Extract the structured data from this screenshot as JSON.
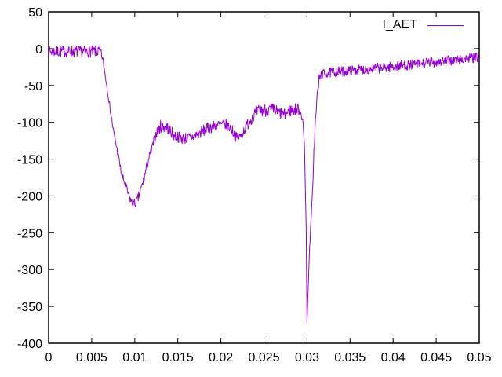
{
  "figure": {
    "background": "#ffffff",
    "border_color": "#000000",
    "text_color": "#000000",
    "line_color": "#9400d3"
  },
  "chart_data": {
    "type": "line",
    "title": "",
    "xlabel": "",
    "ylabel": "",
    "xlim": [
      0,
      0.05
    ],
    "ylim": [
      -400,
      50
    ],
    "grid": false,
    "legend_position": "top-right-inside",
    "xticks": [
      {
        "v": 0,
        "label": "0"
      },
      {
        "v": 0.005,
        "label": "0.005"
      },
      {
        "v": 0.01,
        "label": "0.01"
      },
      {
        "v": 0.015,
        "label": "0.015"
      },
      {
        "v": 0.02,
        "label": "0.02"
      },
      {
        "v": 0.025,
        "label": "0.025"
      },
      {
        "v": 0.03,
        "label": "0.03"
      },
      {
        "v": 0.035,
        "label": "0.035"
      },
      {
        "v": 0.04,
        "label": "0.04"
      },
      {
        "v": 0.045,
        "label": "0.045"
      },
      {
        "v": 0.05,
        "label": "0.05"
      }
    ],
    "yticks": [
      {
        "v": 50,
        "label": "50"
      },
      {
        "v": 0,
        "label": "0"
      },
      {
        "v": -50,
        "label": "-50"
      },
      {
        "v": -100,
        "label": "-100"
      },
      {
        "v": -150,
        "label": "-150"
      },
      {
        "v": -200,
        "label": "-200"
      },
      {
        "v": -250,
        "label": "-250"
      },
      {
        "v": -300,
        "label": "-300"
      },
      {
        "v": -350,
        "label": "-350"
      },
      {
        "v": -400,
        "label": "-400"
      }
    ],
    "series": [
      {
        "name": "I_AET",
        "color": "#9400d3",
        "style": "noisy-line",
        "noise_seed": 7,
        "sample_step": 5e-05,
        "keypoints_format": "[x, center_value, noise_half_amplitude]",
        "keypoints": [
          [
            0,
            -4,
            8
          ],
          [
            0.006,
            -4,
            8
          ],
          [
            0.0063,
            -15,
            4
          ],
          [
            0.007,
            -70,
            4
          ],
          [
            0.0075,
            -110,
            4
          ],
          [
            0.008,
            -140,
            5
          ],
          [
            0.0085,
            -172,
            5
          ],
          [
            0.009,
            -188,
            6
          ],
          [
            0.0093,
            -200,
            6
          ],
          [
            0.0097,
            -210,
            6
          ],
          [
            0.0101,
            -210,
            6
          ],
          [
            0.0104,
            -203,
            7
          ],
          [
            0.011,
            -180,
            7
          ],
          [
            0.0115,
            -155,
            6
          ],
          [
            0.012,
            -135,
            6
          ],
          [
            0.0125,
            -115,
            7
          ],
          [
            0.013,
            -106,
            9
          ],
          [
            0.0137,
            -106,
            9
          ],
          [
            0.0145,
            -117,
            8
          ],
          [
            0.0155,
            -122,
            8
          ],
          [
            0.0165,
            -121,
            8
          ],
          [
            0.0175,
            -115,
            8
          ],
          [
            0.0185,
            -108,
            8
          ],
          [
            0.0195,
            -104,
            8
          ],
          [
            0.0205,
            -103,
            8
          ],
          [
            0.0212,
            -108,
            8
          ],
          [
            0.0218,
            -121,
            7
          ],
          [
            0.0223,
            -119,
            7
          ],
          [
            0.023,
            -104,
            8
          ],
          [
            0.0238,
            -90,
            9
          ],
          [
            0.0245,
            -84,
            9
          ],
          [
            0.026,
            -83,
            9
          ],
          [
            0.0274,
            -90,
            8
          ],
          [
            0.028,
            -84,
            9
          ],
          [
            0.029,
            -82,
            8
          ],
          [
            0.0293,
            -86,
            7
          ],
          [
            0.0295,
            -98,
            5
          ],
          [
            0.0297,
            -130,
            3
          ],
          [
            0.0299,
            -240,
            2
          ],
          [
            0.03,
            -373,
            1
          ],
          [
            0.0301,
            -335,
            2
          ],
          [
            0.0303,
            -272,
            4
          ],
          [
            0.0306,
            -205,
            6
          ],
          [
            0.0308,
            -140,
            8
          ],
          [
            0.031,
            -95,
            8
          ],
          [
            0.0312,
            -62,
            8
          ],
          [
            0.0314,
            -42,
            7
          ],
          [
            0.0317,
            -35,
            7
          ],
          [
            0.033,
            -32,
            7
          ],
          [
            0.035,
            -30,
            7
          ],
          [
            0.037,
            -28,
            7
          ],
          [
            0.039,
            -26,
            7
          ],
          [
            0.041,
            -23,
            7
          ],
          [
            0.043,
            -21,
            7
          ],
          [
            0.045,
            -18,
            7
          ],
          [
            0.047,
            -16,
            7
          ],
          [
            0.049,
            -13,
            7
          ],
          [
            0.05,
            -12,
            7
          ]
        ]
      }
    ]
  }
}
